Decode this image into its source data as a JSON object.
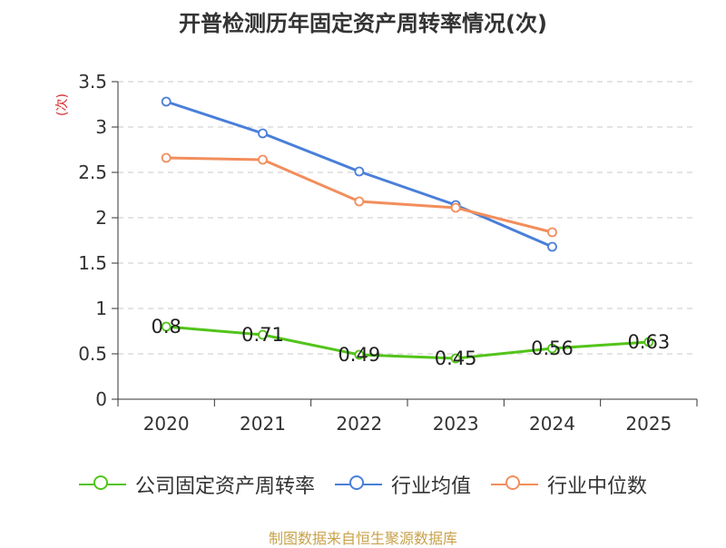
{
  "chart_data": {
    "type": "line",
    "title": "开普检测历年固定资产周转率情况(次)",
    "ylabel": "(次)",
    "xlabel": "",
    "categories": [
      "2020",
      "2021",
      "2022",
      "2023",
      "2024",
      "2025"
    ],
    "ylim": [
      0,
      3.5
    ],
    "yticks": [
      "0",
      "0.5",
      "1",
      "1.5",
      "2",
      "2.5",
      "3",
      "3.5"
    ],
    "series": [
      {
        "name": "公司固定资产周转率",
        "color": "#52c41a",
        "values": [
          0.8,
          0.71,
          0.49,
          0.45,
          0.56,
          0.63
        ],
        "labels": [
          "0.8",
          "0.71",
          "0.49",
          "0.45",
          "0.56",
          "0.63"
        ]
      },
      {
        "name": "行业均值",
        "color": "#4a7fd9",
        "values": [
          3.28,
          2.93,
          2.51,
          2.14,
          1.68,
          null
        ]
      },
      {
        "name": "行业中位数",
        "color": "#f28e5c",
        "values": [
          2.66,
          2.64,
          2.18,
          2.11,
          1.84,
          null
        ]
      }
    ],
    "grid": true,
    "legend": "bottom",
    "source": "制图数据来自恒生聚源数据库"
  }
}
